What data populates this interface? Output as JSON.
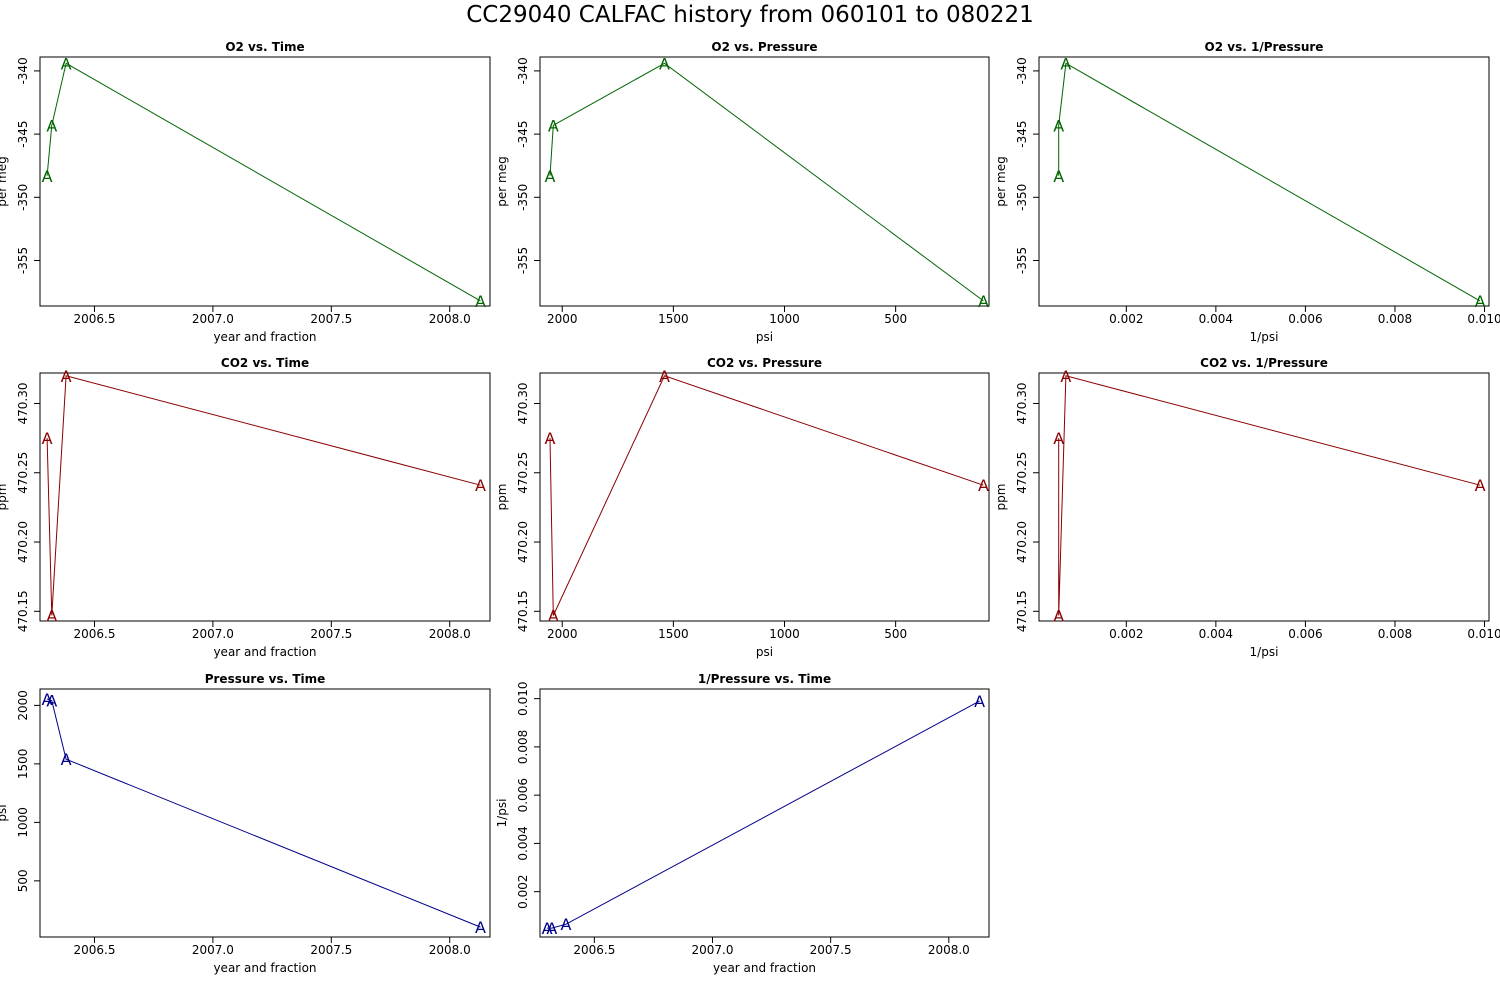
{
  "title": "CC29040   CALFAC history from  060101  to  080221",
  "marker": "A",
  "colors": {
    "o2": "#006400",
    "co2": "#8b0000",
    "pressure": "#00008b",
    "axis": "#000000"
  },
  "chart_data": [
    {
      "type": "line",
      "title": "O2 vs. Time",
      "xlabel": "year and fraction",
      "ylabel": "per meg",
      "xlim": [
        2006.27,
        2008.17
      ],
      "ylim": [
        -358.6,
        -338.9
      ],
      "reversed_x": false,
      "xticks": [
        2006.5,
        2007.0,
        2007.5,
        2008.0
      ],
      "xtick_labels": [
        "2006.5",
        "2007.0",
        "2007.5",
        "2008.0"
      ],
      "yticks": [
        -355,
        -350,
        -345,
        -340
      ],
      "ytick_labels": [
        "-355",
        "-350",
        "-345",
        "-340"
      ],
      "x": [
        2006.3,
        2006.32,
        2006.38,
        2008.13
      ],
      "y": [
        -348.3,
        -344.3,
        -339.4,
        -358.2
      ],
      "color": "#006400"
    },
    {
      "type": "line",
      "title": "O2 vs. Pressure",
      "xlabel": "psi",
      "ylabel": "per meg",
      "xlim": [
        2100,
        80
      ],
      "ylim": [
        -358.6,
        -338.9
      ],
      "reversed_x": true,
      "xticks": [
        2000,
        1500,
        1000,
        500
      ],
      "xtick_labels": [
        "2000",
        "1500",
        "1000",
        "500"
      ],
      "yticks": [
        -355,
        -350,
        -345,
        -340
      ],
      "ytick_labels": [
        "-355",
        "-350",
        "-345",
        "-340"
      ],
      "x": [
        2055,
        2040,
        1540,
        105
      ],
      "y": [
        -348.3,
        -344.3,
        -339.4,
        -358.2
      ],
      "color": "#006400"
    },
    {
      "type": "line",
      "title": "O2 vs. 1/Pressure",
      "xlabel": "1/psi",
      "ylabel": "per meg",
      "xlim": [
        5e-05,
        0.0101
      ],
      "ylim": [
        -358.6,
        -338.9
      ],
      "reversed_x": false,
      "xticks": [
        0.002,
        0.004,
        0.006,
        0.008,
        0.01
      ],
      "xtick_labels": [
        "0.002",
        "0.004",
        "0.006",
        "0.008",
        "0.010"
      ],
      "yticks": [
        -355,
        -350,
        -345,
        -340
      ],
      "ytick_labels": [
        "-355",
        "-350",
        "-345",
        "-340"
      ],
      "x": [
        0.00049,
        0.00049,
        0.00065,
        0.0099
      ],
      "y": [
        -348.3,
        -344.3,
        -339.4,
        -358.2
      ],
      "color": "#006400"
    },
    {
      "type": "line",
      "title": "CO2 vs. Time",
      "xlabel": "year and fraction",
      "ylabel": "ppm",
      "xlim": [
        2006.27,
        2008.17
      ],
      "ylim": [
        470.143,
        470.322
      ],
      "reversed_x": false,
      "xticks": [
        2006.5,
        2007.0,
        2007.5,
        2008.0
      ],
      "xtick_labels": [
        "2006.5",
        "2007.0",
        "2007.5",
        "2008.0"
      ],
      "yticks": [
        470.15,
        470.2,
        470.25,
        470.3
      ],
      "ytick_labels": [
        "470.15",
        "470.20",
        "470.25",
        "470.30"
      ],
      "x": [
        2006.3,
        2006.32,
        2006.38,
        2008.13
      ],
      "y": [
        470.275,
        470.147,
        470.32,
        470.241
      ],
      "color": "#8b0000"
    },
    {
      "type": "line",
      "title": "CO2 vs. Pressure",
      "xlabel": "psi",
      "ylabel": "ppm",
      "xlim": [
        2100,
        80
      ],
      "ylim": [
        470.143,
        470.322
      ],
      "reversed_x": true,
      "xticks": [
        2000,
        1500,
        1000,
        500
      ],
      "xtick_labels": [
        "2000",
        "1500",
        "1000",
        "500"
      ],
      "yticks": [
        470.15,
        470.2,
        470.25,
        470.3
      ],
      "ytick_labels": [
        "470.15",
        "470.20",
        "470.25",
        "470.30"
      ],
      "x": [
        2055,
        2040,
        1540,
        105
      ],
      "y": [
        470.275,
        470.147,
        470.32,
        470.241
      ],
      "color": "#8b0000"
    },
    {
      "type": "line",
      "title": "CO2 vs. 1/Pressure",
      "xlabel": "1/psi",
      "ylabel": "ppm",
      "xlim": [
        5e-05,
        0.0101
      ],
      "ylim": [
        470.143,
        470.322
      ],
      "reversed_x": false,
      "xticks": [
        0.002,
        0.004,
        0.006,
        0.008,
        0.01
      ],
      "xtick_labels": [
        "0.002",
        "0.004",
        "0.006",
        "0.008",
        "0.010"
      ],
      "yticks": [
        470.15,
        470.2,
        470.25,
        470.3
      ],
      "ytick_labels": [
        "470.15",
        "470.20",
        "470.25",
        "470.30"
      ],
      "x": [
        0.00049,
        0.00049,
        0.00065,
        0.0099
      ],
      "y": [
        470.275,
        470.147,
        470.32,
        470.241
      ],
      "color": "#8b0000"
    },
    {
      "type": "line",
      "title": "Pressure vs. Time",
      "xlabel": "year and fraction",
      "ylabel": "psi",
      "xlim": [
        2006.27,
        2008.17
      ],
      "ylim": [
        20,
        2140
      ],
      "reversed_x": false,
      "xticks": [
        2006.5,
        2007.0,
        2007.5,
        2008.0
      ],
      "xtick_labels": [
        "2006.5",
        "2007.0",
        "2007.5",
        "2008.0"
      ],
      "yticks": [
        500,
        1000,
        1500,
        2000
      ],
      "ytick_labels": [
        "500",
        "1000",
        "1500",
        "2000"
      ],
      "x": [
        2006.3,
        2006.32,
        2006.38,
        2008.13
      ],
      "y": [
        2055,
        2040,
        1540,
        105
      ],
      "color": "#00008b"
    },
    {
      "type": "line",
      "title": "1/Pressure vs. Time",
      "xlabel": "year and fraction",
      "ylabel": "1/psi",
      "xlim": [
        2006.27,
        2008.17
      ],
      "ylim": [
        0.00012,
        0.0104
      ],
      "reversed_x": false,
      "xticks": [
        2006.5,
        2007.0,
        2007.5,
        2008.0
      ],
      "xtick_labels": [
        "2006.5",
        "2007.0",
        "2007.5",
        "2008.0"
      ],
      "yticks": [
        0.002,
        0.004,
        0.006,
        0.008,
        0.01
      ],
      "ytick_labels": [
        "0.002",
        "0.004",
        "0.006",
        "0.008",
        "0.010"
      ],
      "x": [
        2006.3,
        2006.32,
        2006.38,
        2008.13
      ],
      "y": [
        0.000487,
        0.00049,
        0.00065,
        0.0099
      ],
      "color": "#00008b"
    }
  ]
}
